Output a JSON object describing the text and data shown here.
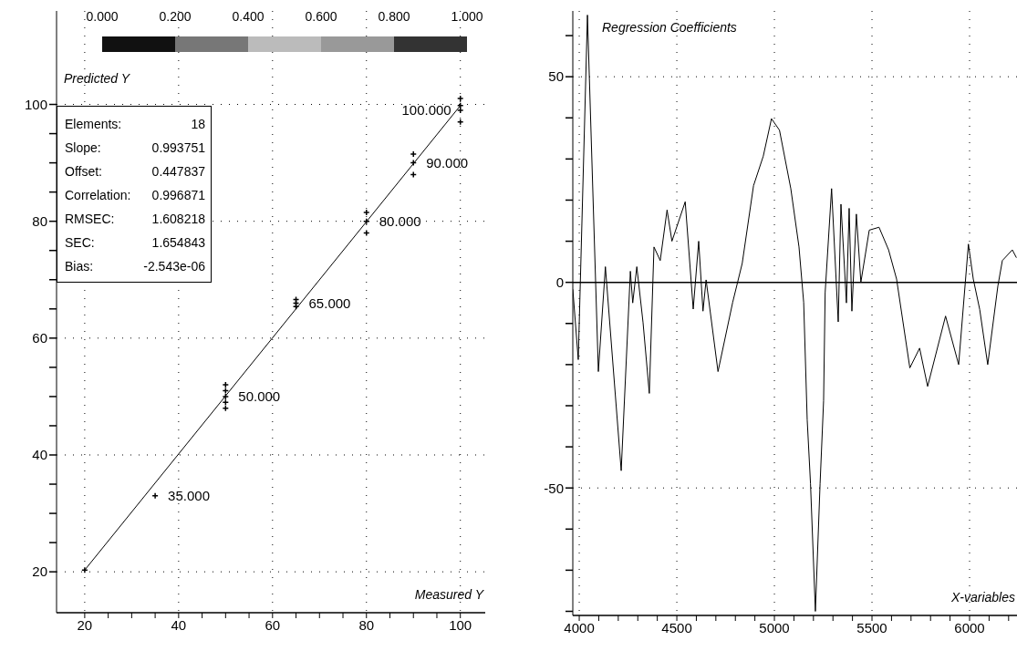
{
  "chart_data": [
    {
      "type": "scatter",
      "xlabel": "Measured Y",
      "ylabel": "Predicted Y",
      "grid": true,
      "marker": "cross",
      "xlim": [
        14,
        105.3
      ],
      "ylim": [
        13,
        116
      ],
      "xticks": [
        20,
        {
          "value": 25,
          "label": null
        },
        {
          "value": 30,
          "label": null
        },
        {
          "value": 35,
          "label": null
        },
        40,
        {
          "value": 45,
          "label": null
        },
        {
          "value": 50,
          "label": null
        },
        {
          "value": 55,
          "label": null
        },
        60,
        {
          "value": 65,
          "label": null
        },
        {
          "value": 70,
          "label": null
        },
        {
          "value": 75,
          "label": null
        },
        80,
        {
          "value": 85,
          "label": null
        },
        {
          "value": 90,
          "label": null
        },
        {
          "value": 95,
          "label": null
        },
        100
      ],
      "yticks": [
        20,
        {
          "value": 25,
          "label": null
        },
        {
          "value": 30,
          "label": null
        },
        {
          "value": 35,
          "label": null
        },
        40,
        {
          "value": 45,
          "label": null
        },
        {
          "value": 50,
          "label": null
        },
        {
          "value": 55,
          "label": null
        },
        60,
        {
          "value": 65,
          "label": null
        },
        {
          "value": 70,
          "label": null
        },
        {
          "value": 75,
          "label": null
        },
        80,
        {
          "value": 85,
          "label": null
        },
        {
          "value": 90,
          "label": null
        },
        {
          "value": 95,
          "label": null
        },
        100
      ],
      "series": [
        {
          "color": "#000000",
          "x": [
            35,
            50,
            50,
            50,
            50,
            50,
            65,
            65,
            65,
            80,
            80,
            80,
            90,
            90,
            90,
            100,
            100,
            100
          ],
          "values": [
            33,
            48,
            49,
            50,
            51,
            52,
            65.4,
            66,
            66.6,
            78,
            80,
            81.5,
            88,
            90,
            91.5,
            97,
            99,
            101
          ]
        },
        {
          "type": "line",
          "color": "#000000",
          "x": [
            20,
            100
          ],
          "values": [
            20.3,
            99.8
          ]
        }
      ],
      "annotations": [
        "0.000",
        "0.200",
        "0.400",
        "0.600",
        "0.800",
        "1.000",
        {
          "text": "35.000",
          "x": 35,
          "y": 33
        },
        {
          "text": "50.000",
          "x": 50,
          "y": 50
        },
        {
          "text": "65.000",
          "x": 65,
          "y": 66
        },
        {
          "text": "80.000",
          "x": 80,
          "y": 80
        },
        {
          "text": "90.000",
          "x": 90,
          "y": 90
        },
        {
          "text": "100.000",
          "x": 100,
          "y": 99
        },
        "Elements:",
        "18",
        "Slope:",
        "0.993751",
        "Offset:",
        "0.447837",
        "Correlation:",
        "0.996871",
        "RMSEC:",
        "1.608218",
        "SEC:",
        "1.654843",
        "Bias:",
        "-2.543e-06"
      ]
    },
    {
      "type": "line",
      "xlabel": "X-variables",
      "ylabel": "Regression Coefficients",
      "grid": true,
      "marker": "none",
      "color": "#000000",
      "xlim": [
        3967,
        6243
      ],
      "ylim": [
        -81,
        66
      ],
      "xticks": [
        4000,
        {
          "value": 4100,
          "label": null
        },
        {
          "value": 4200,
          "label": null
        },
        {
          "value": 4300,
          "label": null
        },
        {
          "value": 4400,
          "label": null
        },
        4500,
        {
          "value": 4600,
          "label": null
        },
        {
          "value": 4700,
          "label": null
        },
        {
          "value": 4800,
          "label": null
        },
        {
          "value": 4900,
          "label": null
        },
        5000,
        {
          "value": 5100,
          "label": null
        },
        {
          "value": 5200,
          "label": null
        },
        {
          "value": 5300,
          "label": null
        },
        {
          "value": 5400,
          "label": null
        },
        5500,
        {
          "value": 5600,
          "label": null
        },
        {
          "value": 5700,
          "label": null
        },
        {
          "value": 5800,
          "label": null
        },
        {
          "value": 5900,
          "label": null
        },
        6000,
        {
          "value": 6100,
          "label": null
        },
        {
          "value": 6200,
          "label": null
        }
      ],
      "yticks": [
        {
          "value": -80,
          "label": null
        },
        {
          "value": -70,
          "label": null
        },
        {
          "value": -60,
          "label": null
        },
        -50,
        {
          "value": -40,
          "label": null
        },
        {
          "value": -30,
          "label": null
        },
        {
          "value": -20,
          "label": null
        },
        {
          "value": -10,
          "label": null
        },
        0,
        {
          "value": 10,
          "label": null
        },
        {
          "value": 20,
          "label": null
        },
        {
          "value": 30,
          "label": null
        },
        {
          "value": 40,
          "label": null
        },
        50,
        {
          "value": 60,
          "label": null
        }
      ],
      "ref_lines": [
        {
          "axis": "y",
          "value": 0,
          "color": "#000000",
          "line_style": "solid"
        }
      ],
      "x": [
        3967,
        3995,
        4042,
        4098,
        4134,
        4215,
        4262,
        4274,
        4295,
        4327,
        4359,
        4383,
        4415,
        4450,
        4475,
        4543,
        4584,
        4612,
        4634,
        4650,
        4711,
        4786,
        4835,
        4893,
        4943,
        4985,
        5026,
        5084,
        5126,
        5150,
        5168,
        5185,
        5210,
        5234,
        5252,
        5260,
        5293,
        5327,
        5341,
        5369,
        5383,
        5397,
        5420,
        5443,
        5486,
        5536,
        5585,
        5626,
        5694,
        5744,
        5785,
        5877,
        5944,
        5994,
        6019,
        6052,
        6093,
        6145,
        6168,
        6219,
        6240
      ],
      "values": [
        -1.7,
        -18.8,
        65,
        -21.7,
        3.8,
        -45.8,
        2.7,
        -5,
        3.8,
        -9.8,
        -27,
        8.6,
        5.3,
        17.6,
        10,
        19.6,
        -6.5,
        10,
        -7,
        0.6,
        -21.7,
        -4.9,
        4.6,
        23.5,
        30.7,
        39.8,
        37,
        22.8,
        8.6,
        -4.9,
        -33.4,
        -49,
        -80,
        -49,
        -28.8,
        -2.5,
        22.8,
        -9.6,
        19,
        -5,
        18,
        -7,
        16.6,
        0,
        12.7,
        13.4,
        7.9,
        0.8,
        -20.8,
        -16,
        -25.3,
        -8.2,
        -20,
        9.3,
        0.8,
        -6.6,
        -20,
        -0.9,
        5.3,
        7.9,
        6
      ]
    }
  ]
}
